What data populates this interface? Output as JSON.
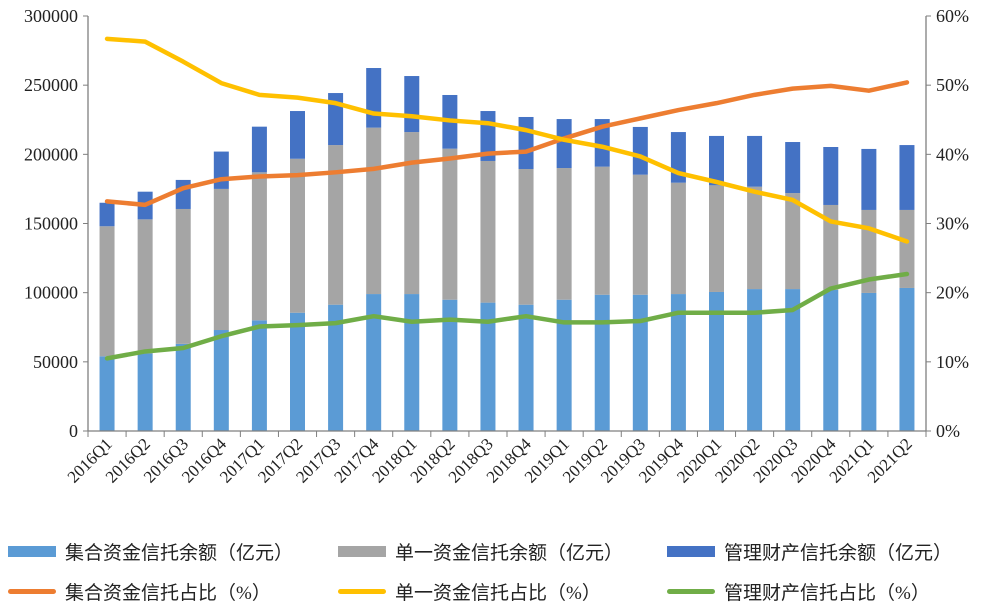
{
  "chart_data": {
    "type": "bar",
    "stacked": true,
    "categories": [
      "2016Q1",
      "2016Q2",
      "2016Q3",
      "2016Q4",
      "2017Q1",
      "2017Q2",
      "2017Q3",
      "2017Q4",
      "2018Q1",
      "2018Q2",
      "2018Q3",
      "2018Q4",
      "2019Q1",
      "2019Q2",
      "2019Q3",
      "2019Q4",
      "2020Q1",
      "2020Q2",
      "2020Q3",
      "2020Q4",
      "2021Q1",
      "2021Q2"
    ],
    "left_axis": {
      "ylim": [
        0,
        300000
      ],
      "ticks": [
        "0",
        "50000",
        "100000",
        "150000",
        "200000",
        "250000",
        "300000"
      ]
    },
    "right_axis": {
      "ylim": [
        0,
        60
      ],
      "ticks": [
        "0%",
        "10%",
        "20%",
        "30%",
        "40%",
        "50%",
        "60%"
      ]
    },
    "grid": false,
    "legend_position": "bottom",
    "bar_series": [
      {
        "name": "集合资金信托余额（亿元）",
        "color": "#5B9BD5",
        "values": [
          54000,
          56000,
          63000,
          73000,
          80000,
          85500,
          91300,
          99000,
          99000,
          94900,
          92800,
          91300,
          94900,
          98500,
          98500,
          99000,
          100500,
          102600,
          102600,
          102000,
          99800,
          103400
        ]
      },
      {
        "name": "单一资金信托余额（亿元）",
        "color": "#A5A5A5",
        "values": [
          94000,
          97000,
          97500,
          102000,
          107000,
          111300,
          115400,
          120300,
          117100,
          109200,
          102400,
          98100,
          95200,
          92600,
          86800,
          80500,
          77100,
          74000,
          69400,
          61400,
          60000,
          56400
        ]
      },
      {
        "name": "管理财产信托余额（亿元）",
        "color": "#4472C4",
        "values": [
          17000,
          20000,
          21000,
          27000,
          33000,
          34500,
          37600,
          43100,
          40500,
          38800,
          36100,
          37600,
          35400,
          34400,
          34500,
          36600,
          35700,
          36700,
          36900,
          41900,
          44100,
          46900
        ]
      }
    ],
    "line_series": [
      {
        "name": "集合资金信托占比（%）",
        "color": "#ED7D31",
        "values": [
          33.2,
          32.7,
          35.1,
          36.4,
          36.8,
          37.0,
          37.4,
          37.9,
          38.8,
          39.4,
          40.1,
          40.4,
          42.3,
          44.0,
          45.2,
          46.4,
          47.4,
          48.6,
          49.5,
          49.9,
          49.2,
          50.4
        ]
      },
      {
        "name": "单一资金信托占比（%）",
        "color": "#FFC000",
        "values": [
          56.7,
          56.3,
          53.4,
          50.3,
          48.6,
          48.2,
          47.4,
          45.9,
          45.5,
          44.9,
          44.5,
          43.5,
          42.1,
          41.1,
          39.7,
          37.3,
          36.0,
          34.6,
          33.4,
          30.3,
          29.3,
          27.4
        ]
      },
      {
        "name": "管理财产信托占比（%）",
        "color": "#70AD47",
        "values": [
          10.5,
          11.5,
          12.0,
          13.7,
          15.1,
          15.3,
          15.6,
          16.6,
          15.8,
          16.1,
          15.8,
          16.6,
          15.7,
          15.7,
          15.9,
          17.1,
          17.1,
          17.1,
          17.5,
          20.6,
          21.9,
          22.7
        ]
      }
    ]
  }
}
